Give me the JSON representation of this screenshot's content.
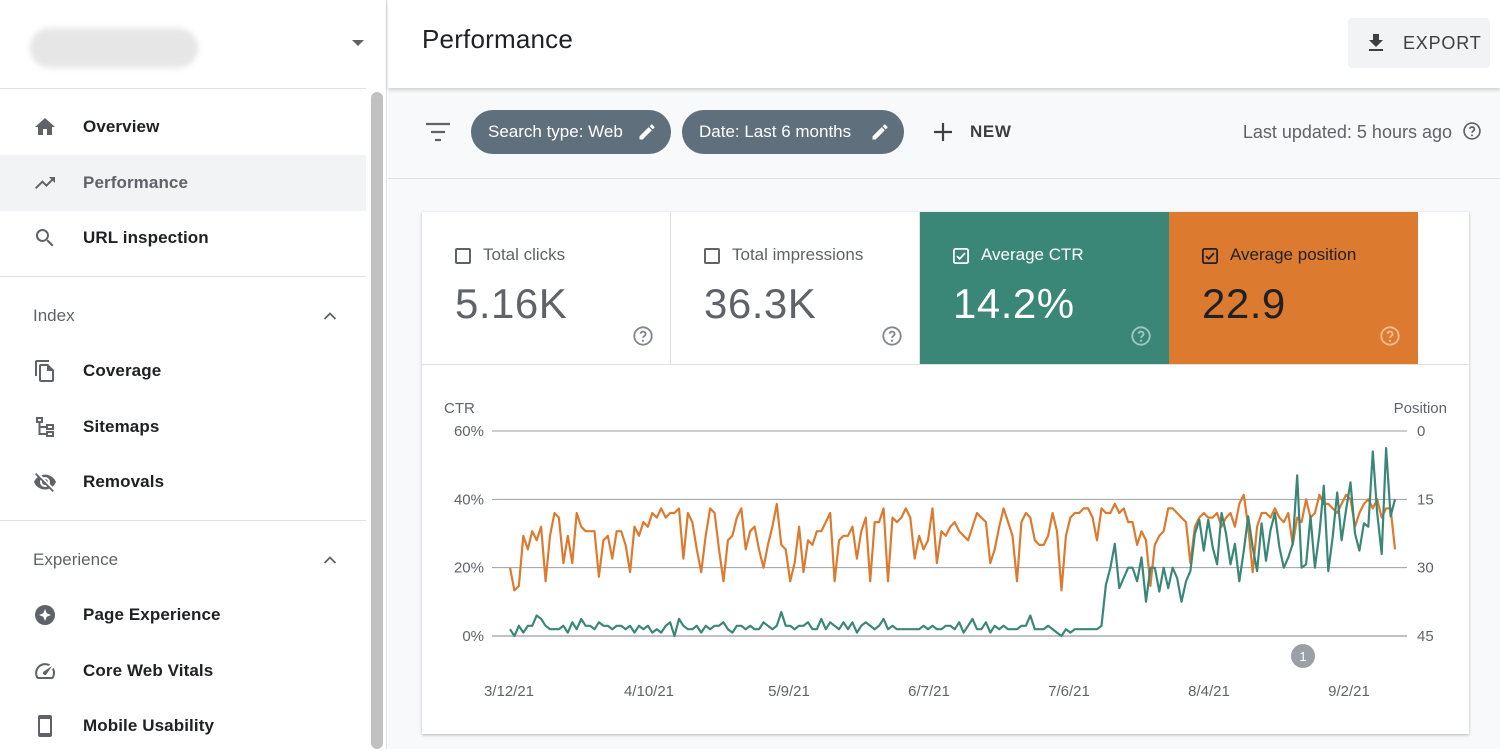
{
  "sidebar": {
    "property_selector": {
      "value": ""
    },
    "items": [
      {
        "id": "overview",
        "label": "Overview",
        "icon": "home-icon",
        "active": false
      },
      {
        "id": "performance",
        "label": "Performance",
        "icon": "trending-up-icon",
        "active": true
      },
      {
        "id": "url-inspection",
        "label": "URL inspection",
        "icon": "search-icon",
        "active": false
      }
    ],
    "sections": [
      {
        "label": "Index",
        "expanded": true,
        "items": [
          {
            "id": "coverage",
            "label": "Coverage",
            "icon": "file-copy-icon"
          },
          {
            "id": "sitemaps",
            "label": "Sitemaps",
            "icon": "sitemap-icon"
          },
          {
            "id": "removals",
            "label": "Removals",
            "icon": "visibility-off-icon"
          }
        ]
      },
      {
        "label": "Experience",
        "expanded": true,
        "items": [
          {
            "id": "page-experience",
            "label": "Page Experience",
            "icon": "page-experience-icon"
          },
          {
            "id": "core-web-vitals",
            "label": "Core Web Vitals",
            "icon": "speed-gauge-icon"
          },
          {
            "id": "mobile-usability",
            "label": "Mobile Usability",
            "icon": "smartphone-icon"
          }
        ]
      }
    ]
  },
  "header": {
    "title": "Performance",
    "export_label": "EXPORT"
  },
  "filters": {
    "chips": [
      {
        "label": "Search type: Web"
      },
      {
        "label": "Date: Last 6 months"
      }
    ],
    "new_label": "NEW",
    "last_updated": "Last updated: 5 hours ago"
  },
  "metrics": [
    {
      "name": "Total clicks",
      "value": "5.16K",
      "checked": false
    },
    {
      "name": "Total impressions",
      "value": "36.3K",
      "checked": false
    },
    {
      "name": "Average CTR",
      "value": "14.2%",
      "checked": true,
      "color": "#3a8778"
    },
    {
      "name": "Average position",
      "value": "22.9",
      "checked": true,
      "color": "#dc7b30"
    }
  ],
  "chart_data": {
    "type": "line",
    "left_axis_label": "CTR",
    "right_axis_label": "Position",
    "left_ticks": [
      "60%",
      "40%",
      "20%",
      "0%"
    ],
    "right_ticks": [
      "0",
      "15",
      "30",
      "45"
    ],
    "ylim_left": [
      0,
      60
    ],
    "ylim_right_inverted": [
      0,
      45
    ],
    "x_labels": [
      "3/12/21",
      "4/10/21",
      "5/9/21",
      "6/7/21",
      "7/6/21",
      "8/4/21",
      "9/2/21"
    ],
    "annotation": "1",
    "grid": true,
    "series": [
      {
        "name": "Average CTR",
        "axis": "left",
        "color": "#3a8778",
        "values": [
          2,
          0,
          3,
          1,
          3,
          3,
          6,
          5,
          3,
          2,
          2,
          2,
          3,
          1,
          4,
          2,
          5,
          3,
          3,
          2,
          4,
          3,
          3,
          2,
          3,
          3,
          2,
          3,
          1,
          3,
          2,
          3,
          1,
          2,
          1,
          3,
          4,
          0,
          5,
          3,
          2,
          2,
          3,
          1,
          3,
          2,
          3,
          3,
          4,
          2,
          1,
          3,
          3,
          2,
          3,
          2,
          2,
          4,
          3,
          2,
          3,
          7,
          3,
          3,
          2,
          3,
          3,
          4,
          2,
          2,
          5,
          2,
          4,
          3,
          2,
          4,
          2,
          4,
          1,
          3,
          4,
          3,
          2,
          3,
          5,
          2,
          3,
          2,
          2,
          2,
          2,
          2,
          2,
          3,
          2,
          3,
          2,
          2,
          3,
          3,
          2,
          4,
          1,
          3,
          5,
          2,
          2,
          4,
          1,
          3,
          2,
          3,
          2,
          2,
          2,
          3,
          3,
          6,
          2,
          2,
          2,
          3,
          2,
          1,
          0,
          2,
          1,
          2,
          2,
          2,
          2,
          2,
          2,
          3,
          15,
          20,
          27,
          14,
          17,
          20,
          20,
          16,
          23,
          10,
          20,
          20,
          13,
          20,
          14,
          20,
          17,
          10,
          16,
          19,
          30,
          34,
          25,
          34,
          26,
          21,
          36,
          30,
          21,
          27,
          16,
          25,
          35,
          26,
          19,
          33,
          22,
          31,
          36,
          26,
          20,
          23,
          27,
          47,
          20,
          21,
          35,
          20,
          30,
          44,
          19,
          29,
          42,
          28,
          37,
          45,
          30,
          25,
          33,
          32,
          54,
          36,
          24,
          55,
          35,
          40
        ]
      },
      {
        "name": "Average position",
        "axis": "right",
        "color": "#dc7b30",
        "values": [
          30,
          35,
          34,
          23,
          26,
          22,
          24,
          21,
          33,
          23,
          18,
          19,
          29,
          23,
          29,
          18,
          21,
          22,
          22,
          22,
          32,
          24,
          23,
          28,
          22,
          22,
          25,
          31,
          21,
          23,
          20,
          21,
          18,
          19,
          17,
          19,
          18,
          18,
          17,
          28,
          18,
          20,
          26,
          31,
          23,
          17,
          18,
          26,
          33,
          24,
          23,
          19,
          17,
          26,
          22,
          21,
          26,
          30,
          25,
          21,
          16,
          25,
          26,
          33,
          29,
          21,
          31,
          24,
          25,
          22,
          22,
          20,
          18,
          33,
          24,
          23,
          23,
          21,
          28,
          22,
          19,
          33,
          20,
          20,
          17,
          33,
          19,
          20,
          19,
          17,
          19,
          28,
          23,
          26,
          24,
          17,
          29,
          22,
          23,
          21,
          20,
          22,
          23,
          24,
          21,
          18,
          19,
          20,
          29,
          26,
          21,
          17,
          20,
          23,
          33,
          20,
          18,
          19,
          24,
          25,
          25,
          23,
          18,
          22,
          35,
          23,
          19,
          18,
          18,
          17,
          17,
          19,
          24,
          17,
          18,
          18,
          16,
          18,
          17,
          20,
          20,
          25,
          22,
          24,
          34,
          25,
          23,
          22,
          17,
          17,
          18,
          19,
          20,
          29,
          21,
          19,
          18,
          19,
          19,
          18,
          21,
          19,
          18,
          21,
          16,
          14,
          21,
          31,
          21,
          18,
          18,
          19,
          17,
          19,
          20,
          18,
          25,
          19,
          20,
          15,
          19,
          18,
          14,
          16,
          16,
          17,
          18,
          16,
          14,
          15,
          21,
          18,
          16,
          15,
          17,
          15,
          19,
          17,
          17,
          26
        ]
      }
    ]
  },
  "colors": {
    "ctr": "#3a8778",
    "position": "#dc7b30",
    "chip": "#5f6f7c",
    "active_nav": "#f1f3f4"
  }
}
